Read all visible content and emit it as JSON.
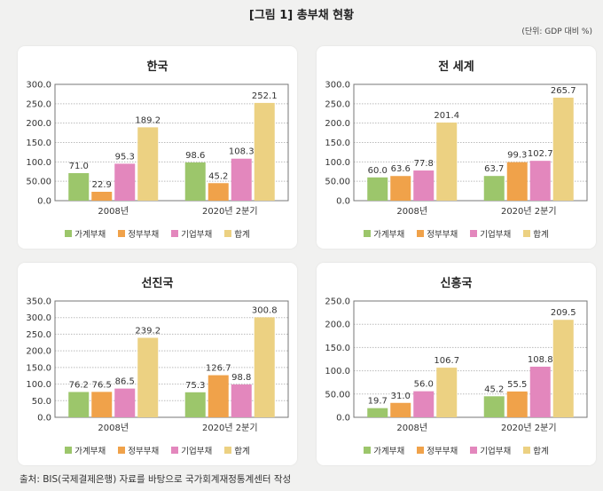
{
  "title": "[그림 1] 총부채 현황",
  "unit": "(단위: GDP 대비 %)",
  "source": "출처: BIS(국제결제은행) 자료를 바탕으로 국가회계재정통계센터 작성",
  "legend": [
    "가계부채",
    "정부부채",
    "기업부채",
    "합계"
  ],
  "colors": [
    "#9cc66b",
    "#f0a24a",
    "#e387bd",
    "#ecd182"
  ],
  "chart_data": [
    {
      "type": "bar",
      "title": "한국",
      "categories": [
        "2008년",
        "2020년 2분기"
      ],
      "ylim": [
        0,
        300
      ],
      "yticks": [
        "0.0",
        "50.00",
        "100.0",
        "150.0",
        "200.0",
        "250.0",
        "300.0"
      ],
      "series": [
        {
          "name": "가계부채",
          "values": [
            71.0,
            98.6
          ],
          "labels": [
            "71.0",
            "98.6"
          ]
        },
        {
          "name": "정부부채",
          "values": [
            22.9,
            45.2
          ],
          "labels": [
            "22.9",
            "45.2"
          ]
        },
        {
          "name": "기업부채",
          "values": [
            95.3,
            108.3
          ],
          "labels": [
            "95.3",
            "108.3"
          ]
        },
        {
          "name": "합계",
          "values": [
            189.2,
            252.1
          ],
          "labels": [
            "189.2",
            "252.1"
          ]
        }
      ]
    },
    {
      "type": "bar",
      "title": "전 세계",
      "categories": [
        "2008년",
        "2020년 2분기"
      ],
      "ylim": [
        0,
        300
      ],
      "yticks": [
        "0.0",
        "50.00",
        "100.0",
        "150.0",
        "200.0",
        "250.0",
        "300.0"
      ],
      "series": [
        {
          "name": "가계부채",
          "values": [
            60.0,
            63.7
          ],
          "labels": [
            "60.0",
            "63.7"
          ]
        },
        {
          "name": "정부부채",
          "values": [
            63.6,
            99.3
          ],
          "labels": [
            "63.6",
            "99.3"
          ]
        },
        {
          "name": "기업부채",
          "values": [
            77.8,
            102.7
          ],
          "labels": [
            "77.8",
            "102.7"
          ]
        },
        {
          "name": "합계",
          "values": [
            201.4,
            265.7
          ],
          "labels": [
            "201.4",
            "265.7"
          ]
        }
      ]
    },
    {
      "type": "bar",
      "title": "선진국",
      "categories": [
        "2008년",
        "2020년 2분기"
      ],
      "ylim": [
        0,
        350
      ],
      "yticks": [
        "0.0",
        "50.0",
        "100.0",
        "150.0",
        "200.0",
        "250.0",
        "300.0",
        "350.0"
      ],
      "series": [
        {
          "name": "가계부채",
          "values": [
            76.2,
            75.3
          ],
          "labels": [
            "76.2",
            "75.3"
          ]
        },
        {
          "name": "정부부채",
          "values": [
            76.5,
            126.7
          ],
          "labels": [
            "76.5",
            "126.7"
          ]
        },
        {
          "name": "기업부채",
          "values": [
            86.5,
            98.8
          ],
          "labels": [
            "86.5",
            "98.8"
          ]
        },
        {
          "name": "합계",
          "values": [
            239.2,
            300.8
          ],
          "labels": [
            "239.2",
            "300.8"
          ]
        }
      ]
    },
    {
      "type": "bar",
      "title": "신흥국",
      "categories": [
        "2008년",
        "2020년 2분기"
      ],
      "ylim": [
        0,
        250
      ],
      "yticks": [
        "0.0",
        "50.00",
        "100.0",
        "150.0",
        "200.0",
        "250.0"
      ],
      "series": [
        {
          "name": "가계부채",
          "values": [
            19.7,
            45.2
          ],
          "labels": [
            "19.7",
            "45.2"
          ]
        },
        {
          "name": "정부부채",
          "values": [
            31.0,
            55.5
          ],
          "labels": [
            "31.0",
            "55.5"
          ]
        },
        {
          "name": "기업부채",
          "values": [
            56.0,
            108.8
          ],
          "labels": [
            "56.0",
            "108.8"
          ]
        },
        {
          "name": "합계",
          "values": [
            106.7,
            209.5
          ],
          "labels": [
            "106.7",
            "209.5"
          ]
        }
      ]
    }
  ]
}
